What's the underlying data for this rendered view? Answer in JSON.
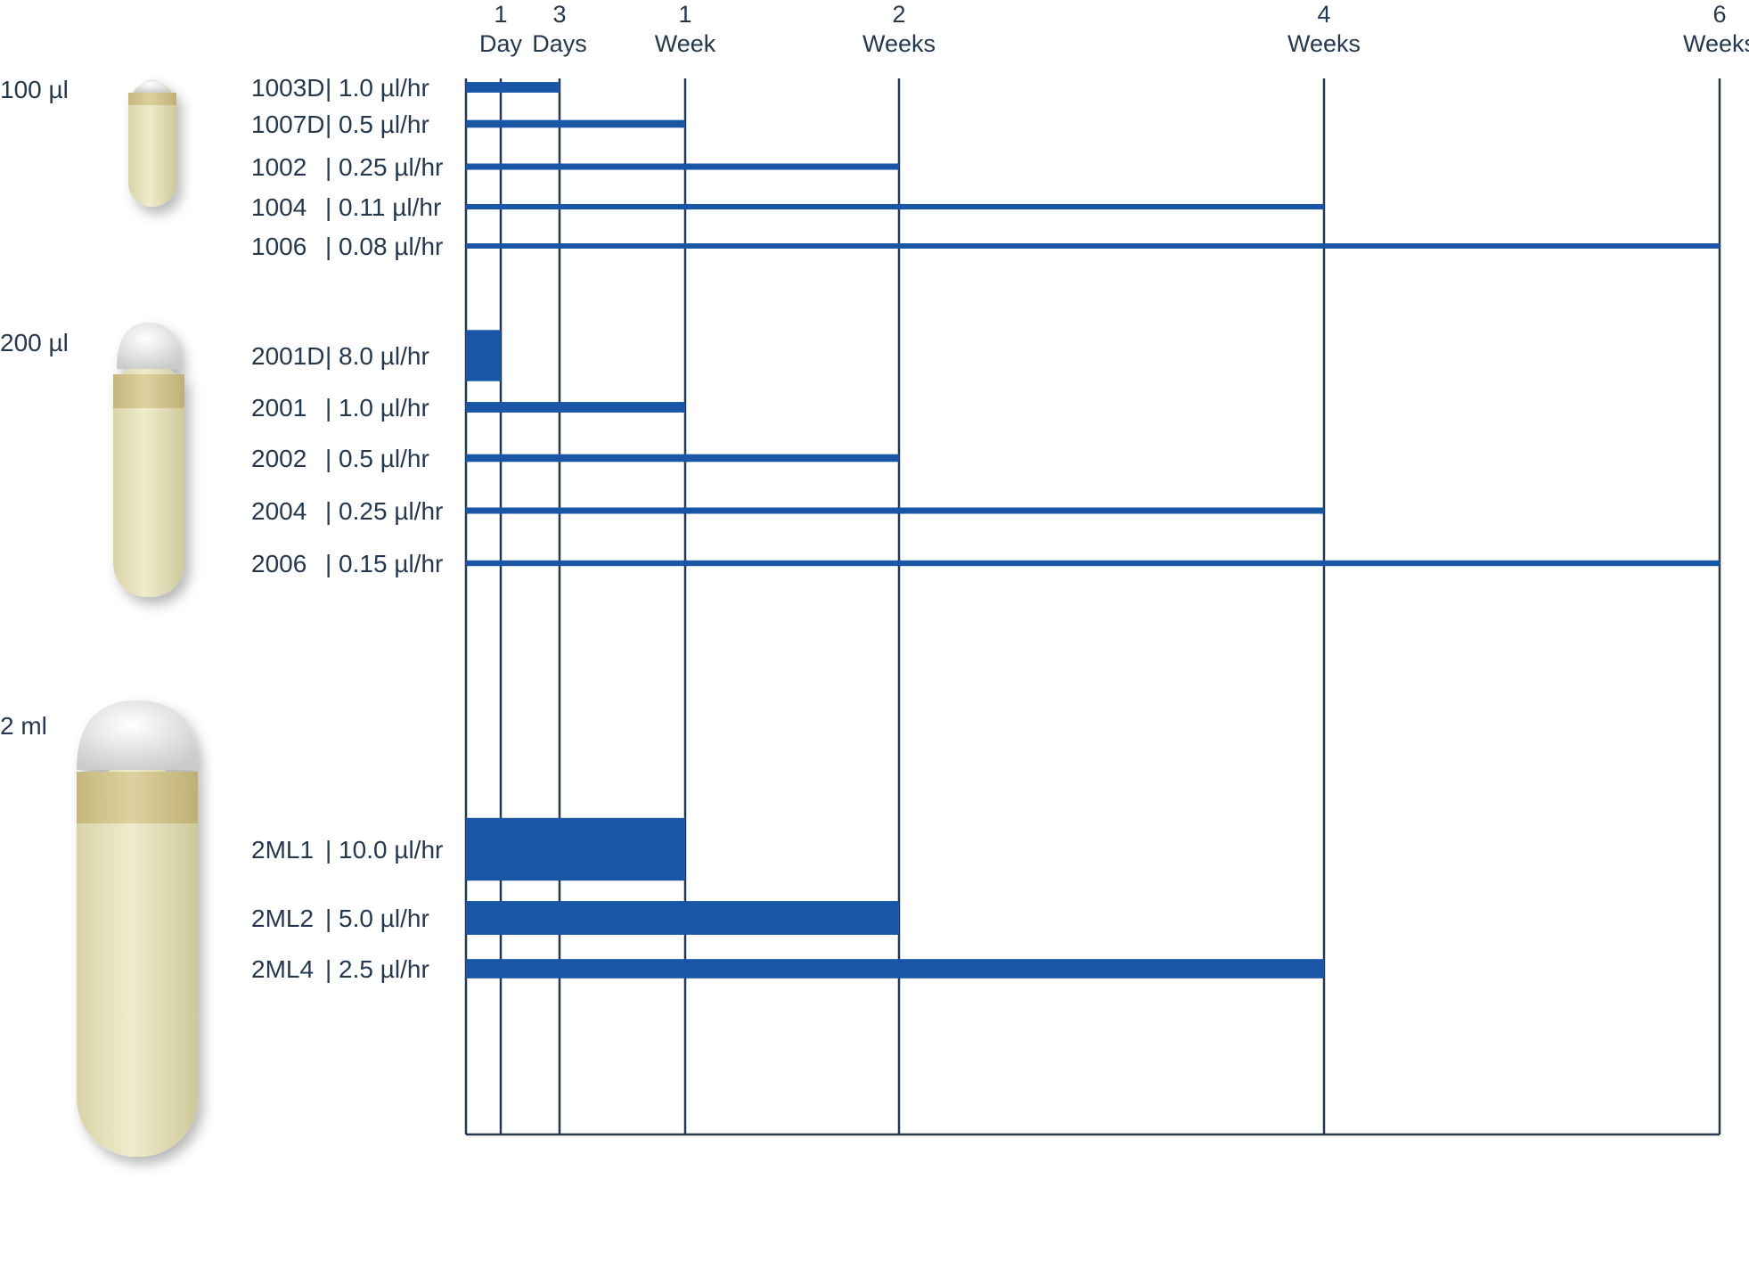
{
  "chart_data": {
    "type": "bar",
    "orientation": "horizontal",
    "title": "",
    "xlabel": "",
    "ylabel": "",
    "x_unit": "days",
    "xlim": [
      0,
      42
    ],
    "ticks": [
      {
        "value": 1,
        "line1": "1",
        "line2": "Day"
      },
      {
        "value": 3,
        "line1": "3",
        "line2": "Days"
      },
      {
        "value": 7,
        "line1": "1",
        "line2": "Week"
      },
      {
        "value": 14,
        "line1": "2",
        "line2": "Weeks"
      },
      {
        "value": 28,
        "line1": "4",
        "line2": "Weeks"
      },
      {
        "value": 42,
        "line1": "6",
        "line2": "Weeks"
      }
    ],
    "grid_vertical": true,
    "bar_color": "#1a56a6",
    "groups": [
      {
        "name": "100 µl",
        "pumps": [
          {
            "model": "1003D",
            "rate": "1.0 µl/hr",
            "rate_ul_hr": 1.0,
            "duration_days": 3
          },
          {
            "model": "1007D",
            "rate": "0.5 µl/hr",
            "rate_ul_hr": 0.5,
            "duration_days": 7
          },
          {
            "model": "1002",
            "rate": "0.25 µl/hr",
            "rate_ul_hr": 0.25,
            "duration_days": 14
          },
          {
            "model": "1004",
            "rate": "0.11 µl/hr",
            "rate_ul_hr": 0.11,
            "duration_days": 28
          },
          {
            "model": "1006",
            "rate": "0.08 µl/hr",
            "rate_ul_hr": 0.08,
            "duration_days": 42
          }
        ]
      },
      {
        "name": "200 µl",
        "pumps": [
          {
            "model": "2001D",
            "rate": "8.0 µl/hr",
            "rate_ul_hr": 8.0,
            "duration_days": 1
          },
          {
            "model": "2001",
            "rate": "1.0 µl/hr",
            "rate_ul_hr": 1.0,
            "duration_days": 7
          },
          {
            "model": "2002",
            "rate": "0.5 µl/hr",
            "rate_ul_hr": 0.5,
            "duration_days": 14
          },
          {
            "model": "2004",
            "rate": "0.25 µl/hr",
            "rate_ul_hr": 0.25,
            "duration_days": 28
          },
          {
            "model": "2006",
            "rate": "0.15 µl/hr",
            "rate_ul_hr": 0.15,
            "duration_days": 42
          }
        ]
      },
      {
        "name": "2 ml",
        "pumps": [
          {
            "model": "2ML1",
            "rate": "10.0 µl/hr",
            "rate_ul_hr": 10.0,
            "duration_days": 7
          },
          {
            "model": "2ML2",
            "rate": "5.0 µl/hr",
            "rate_ul_hr": 5.0,
            "duration_days": 14
          },
          {
            "model": "2ML4",
            "rate": "2.5 µl/hr",
            "rate_ul_hr": 2.5,
            "duration_days": 28
          }
        ]
      }
    ]
  },
  "pump_images": [
    {
      "icon": "osmotic-pump-100ul-icon"
    },
    {
      "icon": "osmotic-pump-200ul-icon"
    },
    {
      "icon": "osmotic-pump-2ml-icon"
    }
  ]
}
